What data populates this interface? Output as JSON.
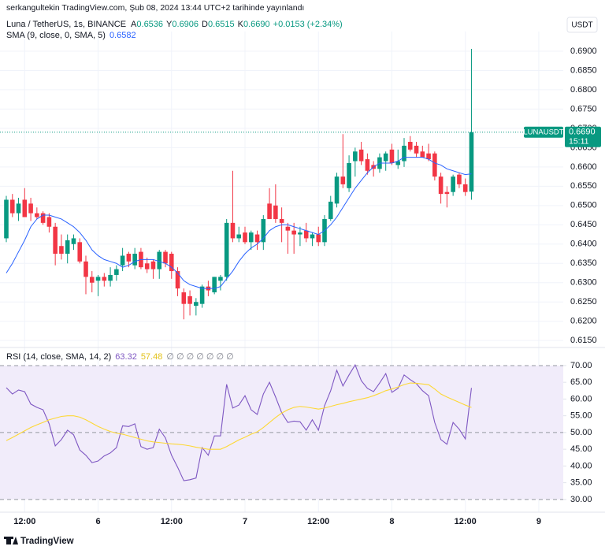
{
  "attribution": "serkangultekin TradingView.com, Şub 08, 2024 13:44 UTC+2 tarihinde yayınlandı",
  "currency": "USDT",
  "footer": "TradingView",
  "chart_data": [
    {
      "type": "candlestick",
      "title": "Luna / TetherUS, 1s, BINANCE",
      "ohlc_letters": [
        "A",
        "Y",
        "D",
        "K"
      ],
      "ohlc_labels": [
        "0.6536",
        "0.6906",
        "0.6515",
        "0.6690"
      ],
      "change": "+0.0153 (+2.34%)",
      "symbol": "LUNAUSDT",
      "countdown": "15:11",
      "up_color": "#089981",
      "down_color": "#f23645",
      "open": [
        0.6415,
        0.6515,
        0.648,
        0.6515,
        0.6505,
        0.648,
        0.648,
        0.647,
        0.6445,
        0.6395,
        0.6375,
        0.64,
        0.6405,
        0.6355,
        0.6315,
        0.6305,
        0.6315,
        0.6305,
        0.632,
        0.6345,
        0.6375,
        0.6345,
        0.638,
        0.635,
        0.6355,
        0.6335,
        0.638,
        0.6375,
        0.633,
        0.6275,
        0.6265,
        0.624,
        0.6245,
        0.629,
        0.6275,
        0.6305,
        0.6315,
        0.6455,
        0.6415,
        0.643,
        0.6405,
        0.6425,
        0.6405,
        0.6505,
        0.65,
        0.6465,
        0.6445,
        0.6435,
        0.6425,
        0.6435,
        0.6415,
        0.6425,
        0.6405,
        0.6465,
        0.6505,
        0.6575,
        0.6545,
        0.6615,
        0.6645,
        0.662,
        0.6605,
        0.6595,
        0.6615,
        0.6645,
        0.6605,
        0.6615,
        0.6665,
        0.6655,
        0.664,
        0.6635,
        0.6635,
        0.6575,
        0.6535,
        0.6535,
        0.658,
        0.6555,
        0.6536
      ],
      "high": [
        0.6525,
        0.653,
        0.652,
        0.6545,
        0.652,
        0.6495,
        0.6485,
        0.648,
        0.6455,
        0.6425,
        0.6425,
        0.6425,
        0.6415,
        0.637,
        0.633,
        0.632,
        0.6325,
        0.634,
        0.6345,
        0.639,
        0.638,
        0.639,
        0.639,
        0.6365,
        0.636,
        0.6385,
        0.6385,
        0.638,
        0.634,
        0.6285,
        0.628,
        0.626,
        0.6295,
        0.6305,
        0.6315,
        0.632,
        0.6465,
        0.659,
        0.6445,
        0.6445,
        0.6435,
        0.6435,
        0.6475,
        0.6545,
        0.6555,
        0.6495,
        0.6455,
        0.6455,
        0.6445,
        0.6455,
        0.643,
        0.6445,
        0.6475,
        0.6525,
        0.6585,
        0.6685,
        0.663,
        0.665,
        0.6665,
        0.6635,
        0.6615,
        0.6635,
        0.664,
        0.666,
        0.6645,
        0.6675,
        0.668,
        0.6665,
        0.6655,
        0.666,
        0.664,
        0.6585,
        0.655,
        0.658,
        0.6585,
        0.657,
        0.6906
      ],
      "low": [
        0.6405,
        0.647,
        0.646,
        0.647,
        0.646,
        0.6465,
        0.645,
        0.643,
        0.6345,
        0.636,
        0.635,
        0.6385,
        0.635,
        0.627,
        0.6275,
        0.6265,
        0.629,
        0.629,
        0.6305,
        0.633,
        0.634,
        0.6335,
        0.6335,
        0.6325,
        0.631,
        0.631,
        0.634,
        0.631,
        0.6265,
        0.6205,
        0.6215,
        0.6215,
        0.6235,
        0.6265,
        0.627,
        0.628,
        0.6305,
        0.6405,
        0.6405,
        0.64,
        0.6385,
        0.6385,
        0.6385,
        0.6465,
        0.6455,
        0.6405,
        0.6375,
        0.6375,
        0.6395,
        0.6405,
        0.6395,
        0.6395,
        0.6395,
        0.646,
        0.6495,
        0.6545,
        0.6535,
        0.6575,
        0.6605,
        0.658,
        0.6575,
        0.6585,
        0.659,
        0.6605,
        0.6595,
        0.66,
        0.664,
        0.6625,
        0.6625,
        0.6615,
        0.6565,
        0.6505,
        0.6495,
        0.6525,
        0.6545,
        0.6525,
        0.6515
      ],
      "close": [
        0.6515,
        0.648,
        0.6505,
        0.647,
        0.648,
        0.647,
        0.6455,
        0.6445,
        0.6375,
        0.6375,
        0.641,
        0.6415,
        0.6355,
        0.6315,
        0.63,
        0.6315,
        0.6305,
        0.632,
        0.6335,
        0.637,
        0.6355,
        0.6375,
        0.634,
        0.6335,
        0.6335,
        0.638,
        0.635,
        0.633,
        0.6285,
        0.6245,
        0.6245,
        0.625,
        0.629,
        0.628,
        0.6315,
        0.6315,
        0.6455,
        0.6415,
        0.6425,
        0.6405,
        0.643,
        0.6405,
        0.6465,
        0.6465,
        0.6465,
        0.6455,
        0.6435,
        0.6425,
        0.643,
        0.6415,
        0.6425,
        0.6405,
        0.6465,
        0.651,
        0.6575,
        0.6555,
        0.661,
        0.664,
        0.6615,
        0.659,
        0.6595,
        0.6625,
        0.6635,
        0.661,
        0.6615,
        0.6655,
        0.6645,
        0.6635,
        0.6625,
        0.662,
        0.6575,
        0.653,
        0.653,
        0.6575,
        0.6555,
        0.6535,
        0.669
      ],
      "sma": {
        "name": "SMA (9, close, 0, SMA, 5)",
        "color": "#2962ff",
        "values": [
          0.6325,
          0.635,
          0.638,
          0.641,
          0.6445,
          0.6465,
          0.6475,
          0.6475,
          0.647,
          0.6465,
          0.6455,
          0.6445,
          0.643,
          0.641,
          0.6385,
          0.637,
          0.636,
          0.6355,
          0.635,
          0.634,
          0.6345,
          0.6355,
          0.636,
          0.636,
          0.636,
          0.6355,
          0.635,
          0.634,
          0.6325,
          0.6305,
          0.6295,
          0.629,
          0.6285,
          0.6285,
          0.6285,
          0.629,
          0.631,
          0.633,
          0.6355,
          0.6375,
          0.639,
          0.64,
          0.6415,
          0.6435,
          0.6445,
          0.645,
          0.645,
          0.6445,
          0.644,
          0.6435,
          0.643,
          0.6425,
          0.6435,
          0.645,
          0.647,
          0.6495,
          0.652,
          0.6545,
          0.6565,
          0.6585,
          0.66,
          0.661,
          0.661,
          0.661,
          0.6615,
          0.6625,
          0.6625,
          0.6625,
          0.6625,
          0.662,
          0.661,
          0.6605,
          0.6595,
          0.659,
          0.6585,
          0.658,
          0.6582
        ]
      },
      "ylim": [
        0.6132,
        0.6951
      ],
      "yticks": [
        {
          "value": 0.615,
          "label": "0.6150"
        },
        {
          "value": 0.62,
          "label": "0.6200"
        },
        {
          "value": 0.625,
          "label": "0.6250"
        },
        {
          "value": 0.63,
          "label": "0.6300"
        },
        {
          "value": 0.635,
          "label": "0.6350"
        },
        {
          "value": 0.64,
          "label": "0.6400"
        },
        {
          "value": 0.645,
          "label": "0.6450"
        },
        {
          "value": 0.65,
          "label": "0.6500"
        },
        {
          "value": 0.655,
          "label": "0.6550"
        },
        {
          "value": 0.66,
          "label": "0.6600"
        },
        {
          "value": 0.665,
          "label": "0.6650"
        },
        {
          "value": 0.67,
          "label": "0.6700"
        },
        {
          "value": 0.675,
          "label": "0.6750"
        },
        {
          "value": 0.68,
          "label": "0.6800"
        },
        {
          "value": 0.685,
          "label": "0.6850"
        },
        {
          "value": 0.69,
          "label": "0.6900"
        }
      ],
      "xlim": [
        -1.03,
        91
      ],
      "xticks": [
        {
          "value": 3,
          "label": "12:00"
        },
        {
          "value": 15,
          "label": "6"
        },
        {
          "value": 27,
          "label": "12:00"
        },
        {
          "value": 39,
          "label": "7"
        },
        {
          "value": 51,
          "label": "12:00"
        },
        {
          "value": 63,
          "label": "8"
        },
        {
          "value": 75,
          "label": "12:00"
        },
        {
          "value": 87,
          "label": "9"
        }
      ],
      "grid": true
    },
    {
      "type": "line",
      "symbols": "∅ ∅ ∅ ∅ ∅ ∅ ∅",
      "series": [
        {
          "name": "RSI (14, close, SMA, 14, 2)",
          "color": "#7e57c2",
          "values": [
            63.4,
            61.5,
            62.7,
            62.2,
            58.5,
            57.5,
            56.8,
            52.6,
            46,
            47.9,
            50.7,
            49.3,
            44.8,
            43.2,
            41,
            41.5,
            43,
            43.9,
            45.5,
            52,
            51.8,
            52.6,
            45.8,
            45,
            45.5,
            51,
            48.4,
            43.2,
            39.6,
            35.6,
            35.9,
            36.4,
            45.5,
            43.2,
            49,
            49,
            64.4,
            57.3,
            58.2,
            61,
            56.8,
            55.4,
            61.5,
            65,
            60.6,
            55.9,
            53,
            53.4,
            53.2,
            50.7,
            53.8,
            50.7,
            58,
            62.5,
            68.6,
            63.9,
            67.2,
            70.2,
            65.5,
            63.2,
            62.2,
            64.8,
            67.6,
            62,
            63.2,
            67.2,
            65.8,
            64.6,
            62.5,
            61,
            53,
            47.9,
            46.5,
            53,
            51,
            48.1,
            63.32
          ]
        },
        {
          "color": "#fdd835",
          "values": [
            47.6,
            48.5,
            49.5,
            50.5,
            51.5,
            52.3,
            53,
            53.8,
            54.3,
            54.8,
            55,
            55,
            54.6,
            53.8,
            52.8,
            51.8,
            51,
            50.3,
            49.8,
            49.5,
            49,
            48.5,
            48,
            47.5,
            47.2,
            47,
            46.8,
            46.6,
            46.5,
            46.3,
            46,
            45.6,
            45.3,
            45,
            45,
            45,
            45.8,
            46.8,
            47.8,
            48.6,
            49.5,
            50.2,
            51.5,
            53,
            54.5,
            55.8,
            56.8,
            57.5,
            57.8,
            57.6,
            57.3,
            57,
            57.3,
            57.8,
            58.3,
            58.7,
            59.2,
            59.6,
            60,
            60.4,
            61,
            61.7,
            62.5,
            63,
            63.6,
            64.3,
            64.8,
            64.7,
            64.5,
            64.3,
            63,
            61.5,
            60.6,
            59.8,
            59,
            58.2,
            57.48
          ]
        }
      ],
      "bands": [
        30,
        50,
        70
      ],
      "band_fill": "#f1ecfa",
      "ylim": [
        26.2,
        75.4
      ],
      "yticks": [
        {
          "value": 30,
          "label": "30.00"
        },
        {
          "value": 35,
          "label": "35.00"
        },
        {
          "value": 40,
          "label": "40.00"
        },
        {
          "value": 45,
          "label": "45.00"
        },
        {
          "value": 50,
          "label": "50.00"
        },
        {
          "value": 55,
          "label": "55.00"
        },
        {
          "value": 60,
          "label": "60.00"
        },
        {
          "value": 65,
          "label": "65.00"
        },
        {
          "value": 70,
          "label": "70.00"
        }
      ]
    }
  ]
}
